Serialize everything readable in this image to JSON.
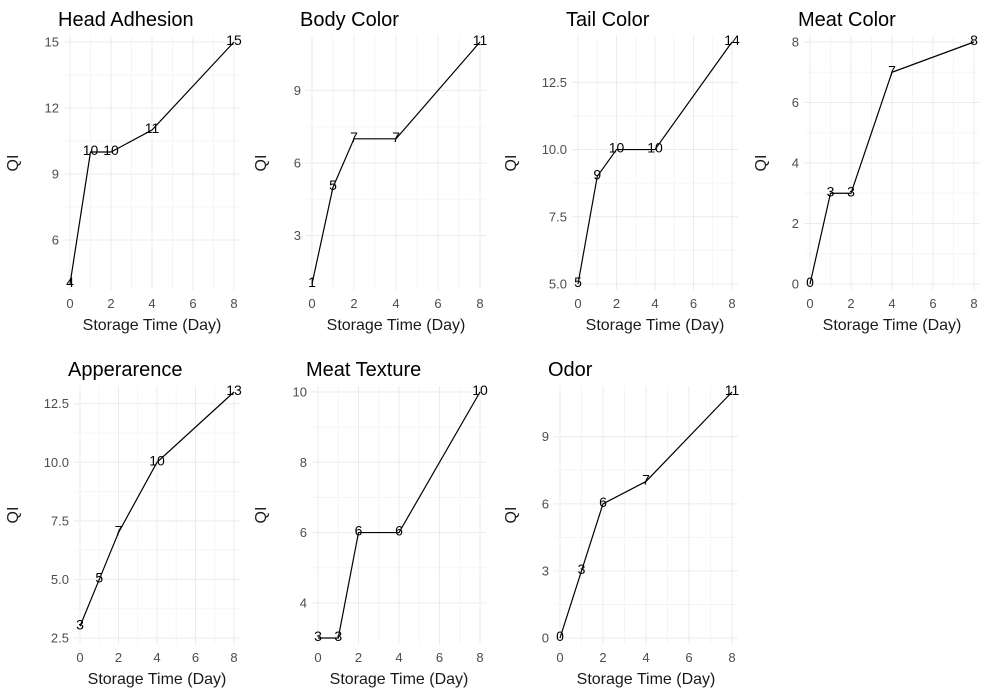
{
  "chart_data": [
    {
      "type": "line",
      "title": "Head Adhesion",
      "xlabel": "Storage Time (Day)",
      "ylabel": "QI",
      "x": [
        0,
        1,
        2,
        4,
        8
      ],
      "values": [
        4,
        10,
        10,
        11,
        15
      ],
      "xlim": [
        0,
        8
      ],
      "ylim": [
        4,
        15
      ],
      "xticks": [
        0,
        2,
        4,
        6,
        8
      ],
      "yticks": [
        6,
        9,
        12,
        15
      ],
      "grid": true
    },
    {
      "type": "line",
      "title": "Body Color",
      "xlabel": "Storage Time (Day)",
      "ylabel": "QI",
      "x": [
        0,
        1,
        2,
        4,
        8
      ],
      "values": [
        1,
        5,
        7,
        7,
        11
      ],
      "xlim": [
        0,
        8
      ],
      "ylim": [
        1,
        11
      ],
      "xticks": [
        0,
        2,
        4,
        6,
        8
      ],
      "yticks": [
        3,
        6,
        9
      ],
      "grid": true
    },
    {
      "type": "line",
      "title": "Tail Color",
      "xlabel": "Storage Time (Day)",
      "ylabel": "QI",
      "x": [
        0,
        1,
        2,
        4,
        8
      ],
      "values": [
        5,
        9,
        10,
        10,
        14
      ],
      "xlim": [
        0,
        8
      ],
      "ylim": [
        5,
        14
      ],
      "xticks": [
        0,
        2,
        4,
        6,
        8
      ],
      "yticks": [
        5.0,
        7.5,
        10.0,
        12.5
      ],
      "ytick_labels": [
        "5.0",
        "7.5",
        "10.0",
        "12.5"
      ],
      "grid": true
    },
    {
      "type": "line",
      "title": "Meat Color",
      "xlabel": "Storage Time (Day)",
      "ylabel": "QI",
      "x": [
        0,
        1,
        2,
        4,
        8
      ],
      "values": [
        0,
        3,
        3,
        7,
        8
      ],
      "xlim": [
        0,
        8
      ],
      "ylim": [
        0,
        8
      ],
      "xticks": [
        0,
        2,
        4,
        6,
        8
      ],
      "yticks": [
        0,
        2,
        4,
        6,
        8
      ],
      "grid": true
    },
    {
      "type": "line",
      "title": "Apperarence",
      "xlabel": "Storage Time (Day)",
      "ylabel": "QI",
      "x": [
        0,
        1,
        2,
        4,
        8
      ],
      "values": [
        3,
        5,
        7,
        10,
        13
      ],
      "xlim": [
        0,
        8
      ],
      "ylim": [
        3,
        13
      ],
      "xticks": [
        0,
        2,
        4,
        6,
        8
      ],
      "yticks": [
        2.5,
        5.0,
        7.5,
        10.0,
        12.5
      ],
      "ytick_labels": [
        "2.5",
        "5.0",
        "7.5",
        "10.0",
        "12.5"
      ],
      "grid": true
    },
    {
      "type": "line",
      "title": "Meat Texture",
      "xlabel": "Storage Time (Day)",
      "ylabel": "QI",
      "x": [
        0,
        1,
        2,
        4,
        8
      ],
      "values": [
        3,
        3,
        6,
        6,
        10
      ],
      "xlim": [
        0,
        8
      ],
      "ylim": [
        3,
        10
      ],
      "xticks": [
        0,
        2,
        4,
        6,
        8
      ],
      "yticks": [
        4,
        6,
        8,
        10
      ],
      "grid": true
    },
    {
      "type": "line",
      "title": "Odor",
      "xlabel": "Storage Time (Day)",
      "ylabel": "QI",
      "x": [
        0,
        1,
        2,
        4,
        8
      ],
      "values": [
        0,
        3,
        6,
        7,
        11
      ],
      "xlim": [
        0,
        8
      ],
      "ylim": [
        0,
        11
      ],
      "xticks": [
        0,
        2,
        4,
        6,
        8
      ],
      "yticks": [
        0,
        3,
        6,
        9
      ],
      "grid": true
    }
  ]
}
